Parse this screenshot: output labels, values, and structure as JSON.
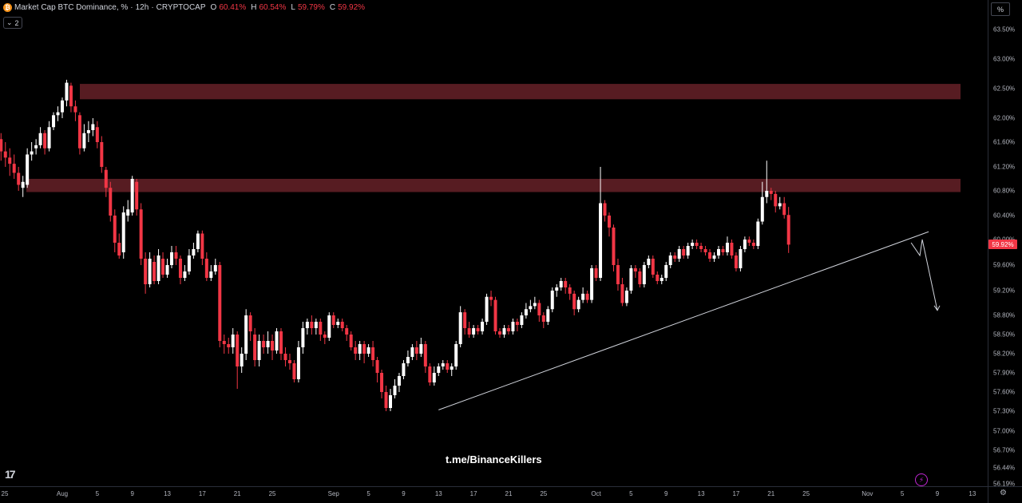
{
  "legend": {
    "symbol": "Market Cap BTC Dominance, %",
    "separator": "·",
    "interval": "12h",
    "exchange": "CRYPTOCAP",
    "open_label": "O",
    "open": "60.41%",
    "high_label": "H",
    "high": "60.54%",
    "low_label": "L",
    "low": "59.79%",
    "close_label": "C",
    "close": "59.92%",
    "coin_icon": "bitcoin-icon"
  },
  "indicators_toggle": {
    "label": "2",
    "icon": "chevron-down-icon"
  },
  "scale_button": "%",
  "watermark": "t.me/BinanceKillers",
  "last_price_tag": "59.92%",
  "colors": {
    "up": "#ffffff",
    "down": "#f23645",
    "zone": "#5c1e24",
    "trendline": "#d1d4dc",
    "background": "#000000"
  },
  "chart_data": {
    "type": "candlestick",
    "title": "Market Cap BTC Dominance, %",
    "interval": "12h",
    "y_unit": "%",
    "ylim": [
      56.19,
      63.74
    ],
    "y_ticks": [
      "63.50%",
      "63.00%",
      "62.50%",
      "62.00%",
      "61.60%",
      "61.20%",
      "60.80%",
      "60.40%",
      "60.00%",
      "59.60%",
      "59.20%",
      "58.80%",
      "58.50%",
      "58.20%",
      "57.90%",
      "57.60%",
      "57.30%",
      "57.00%",
      "56.70%",
      "56.44%",
      "56.19%"
    ],
    "x_ticks": [
      "25",
      "Aug",
      "5",
      "9",
      "13",
      "17",
      "21",
      "25",
      "Sep",
      "5",
      "9",
      "13",
      "17",
      "21",
      "25",
      "Oct",
      "5",
      "9",
      "13",
      "17",
      "21",
      "25",
      "Nov",
      "5",
      "9",
      "13"
    ],
    "resistance_zones": [
      {
        "low": 62.32,
        "high": 62.58
      },
      {
        "low": 60.78,
        "high": 61.0
      }
    ],
    "trendline": {
      "from": {
        "date": "Sep 13",
        "value": 57.32
      },
      "to": {
        "date": "Nov 8",
        "value": 60.13
      }
    },
    "projection": [
      {
        "date": "Nov 6",
        "value": 59.95
      },
      {
        "date": "Nov 7",
        "value": 59.75
      },
      {
        "date": "Nov 7",
        "value": 60.0
      },
      {
        "date": "Nov 9",
        "value": 58.88
      }
    ],
    "candles": [
      [
        61.65,
        61.45,
        61.75,
        61.3
      ],
      [
        61.45,
        61.35,
        61.6,
        61.2
      ],
      [
        61.35,
        61.25,
        61.5,
        61.05
      ],
      [
        61.25,
        61.1,
        61.4,
        61.0
      ],
      [
        61.1,
        60.9,
        61.2,
        60.8
      ],
      [
        60.85,
        60.95,
        61.05,
        60.7
      ],
      [
        60.9,
        61.4,
        61.5,
        60.85
      ],
      [
        61.4,
        61.45,
        61.6,
        61.3
      ],
      [
        61.5,
        61.55,
        61.65,
        61.4
      ],
      [
        61.55,
        61.75,
        61.85,
        61.5
      ],
      [
        61.75,
        61.5,
        61.8,
        61.4
      ],
      [
        61.5,
        61.85,
        61.95,
        61.45
      ],
      [
        61.85,
        62.05,
        62.1,
        61.8
      ],
      [
        62.05,
        62.1,
        62.2,
        61.95
      ],
      [
        62.1,
        62.3,
        62.35,
        62.0
      ],
      [
        62.3,
        62.6,
        62.65,
        62.2
      ],
      [
        62.55,
        62.2,
        62.6,
        62.1
      ],
      [
        62.2,
        62.1,
        62.3,
        61.95
      ],
      [
        62.05,
        61.5,
        62.1,
        61.4
      ],
      [
        61.5,
        61.75,
        61.9,
        61.45
      ],
      [
        61.75,
        61.8,
        61.95,
        61.6
      ],
      [
        61.8,
        61.9,
        62.0,
        61.7
      ],
      [
        61.85,
        61.6,
        61.95,
        61.5
      ],
      [
        61.6,
        61.2,
        61.7,
        61.1
      ],
      [
        61.15,
        60.85,
        61.2,
        60.7
      ],
      [
        60.85,
        60.4,
        60.95,
        60.3
      ],
      [
        60.4,
        59.95,
        60.5,
        59.8
      ],
      [
        59.95,
        59.75,
        60.1,
        59.7
      ],
      [
        59.8,
        60.45,
        60.55,
        59.7
      ],
      [
        60.4,
        60.5,
        60.65,
        60.3
      ],
      [
        60.45,
        61.0,
        61.05,
        60.4
      ],
      [
        60.95,
        60.5,
        61.0,
        60.4
      ],
      [
        60.5,
        59.7,
        60.6,
        59.6
      ],
      [
        59.7,
        59.3,
        59.8,
        59.15
      ],
      [
        59.3,
        59.7,
        59.8,
        59.25
      ],
      [
        59.65,
        59.35,
        59.75,
        59.3
      ],
      [
        59.35,
        59.75,
        59.85,
        59.3
      ],
      [
        59.7,
        59.45,
        59.8,
        59.4
      ],
      [
        59.45,
        59.6,
        59.7,
        59.4
      ],
      [
        59.6,
        59.8,
        59.9,
        59.55
      ],
      [
        59.8,
        59.7,
        59.9,
        59.6
      ],
      [
        59.7,
        59.4,
        59.75,
        59.3
      ],
      [
        59.4,
        59.5,
        59.6,
        59.35
      ],
      [
        59.5,
        59.75,
        59.85,
        59.45
      ],
      [
        59.75,
        59.85,
        59.95,
        59.7
      ],
      [
        59.85,
        60.1,
        60.15,
        59.8
      ],
      [
        60.1,
        59.7,
        60.15,
        59.6
      ],
      [
        59.7,
        59.4,
        59.8,
        59.35
      ],
      [
        59.4,
        59.5,
        59.6,
        59.35
      ],
      [
        59.5,
        59.6,
        59.7,
        59.45
      ],
      [
        59.6,
        58.4,
        59.65,
        58.3
      ],
      [
        58.4,
        58.35,
        58.5,
        58.2
      ],
      [
        58.35,
        58.3,
        58.45,
        58.2
      ],
      [
        58.3,
        58.5,
        58.6,
        58.2
      ],
      [
        58.5,
        58.0,
        58.55,
        57.65
      ],
      [
        58.0,
        58.2,
        58.3,
        57.9
      ],
      [
        58.2,
        58.8,
        58.9,
        58.1
      ],
      [
        58.8,
        58.55,
        58.85,
        58.4
      ],
      [
        58.5,
        58.1,
        58.6,
        58.0
      ],
      [
        58.1,
        58.4,
        58.5,
        58.0
      ],
      [
        58.4,
        58.3,
        58.5,
        58.2
      ],
      [
        58.3,
        58.4,
        58.55,
        58.2
      ],
      [
        58.4,
        58.25,
        58.5,
        58.1
      ],
      [
        58.25,
        58.55,
        58.6,
        58.2
      ],
      [
        58.55,
        58.2,
        58.6,
        58.1
      ],
      [
        58.2,
        58.1,
        58.3,
        58.0
      ],
      [
        58.1,
        58.05,
        58.2,
        57.95
      ],
      [
        58.05,
        57.8,
        58.1,
        57.75
      ],
      [
        57.8,
        58.3,
        58.4,
        57.75
      ],
      [
        58.3,
        58.6,
        58.7,
        58.2
      ],
      [
        58.6,
        58.7,
        58.75,
        58.5
      ],
      [
        58.7,
        58.6,
        58.8,
        58.5
      ],
      [
        58.6,
        58.7,
        58.75,
        58.5
      ],
      [
        58.7,
        58.5,
        58.75,
        58.4
      ],
      [
        58.5,
        58.45,
        58.55,
        58.35
      ],
      [
        58.45,
        58.8,
        58.85,
        58.4
      ],
      [
        58.8,
        58.65,
        58.85,
        58.6
      ],
      [
        58.65,
        58.7,
        58.75,
        58.6
      ],
      [
        58.7,
        58.6,
        58.75,
        58.55
      ],
      [
        58.6,
        58.5,
        58.65,
        58.4
      ],
      [
        58.5,
        58.3,
        58.55,
        58.25
      ],
      [
        58.3,
        58.2,
        58.4,
        58.1
      ],
      [
        58.2,
        58.35,
        58.4,
        58.1
      ],
      [
        58.35,
        58.2,
        58.4,
        58.05
      ],
      [
        58.2,
        58.3,
        58.35,
        58.15
      ],
      [
        58.3,
        58.1,
        58.4,
        58.0
      ],
      [
        58.1,
        57.9,
        58.15,
        57.75
      ],
      [
        57.9,
        57.6,
        57.95,
        57.5
      ],
      [
        57.6,
        57.35,
        57.7,
        57.3
      ],
      [
        57.35,
        57.55,
        57.65,
        57.3
      ],
      [
        57.55,
        57.7,
        57.8,
        57.5
      ],
      [
        57.7,
        57.85,
        57.9,
        57.6
      ],
      [
        57.85,
        58.05,
        58.1,
        57.8
      ],
      [
        58.05,
        58.15,
        58.25,
        58.0
      ],
      [
        58.15,
        58.3,
        58.35,
        58.1
      ],
      [
        58.3,
        58.2,
        58.4,
        58.1
      ],
      [
        58.2,
        58.35,
        58.45,
        58.15
      ],
      [
        58.35,
        58.0,
        58.4,
        57.9
      ],
      [
        58.0,
        57.75,
        58.05,
        57.7
      ],
      [
        57.75,
        57.9,
        58.0,
        57.7
      ],
      [
        57.9,
        58.0,
        58.05,
        57.85
      ],
      [
        58.0,
        58.05,
        58.1,
        57.95
      ],
      [
        58.05,
        57.95,
        58.1,
        57.9
      ],
      [
        57.95,
        58.0,
        58.05,
        57.85
      ],
      [
        58.0,
        58.35,
        58.4,
        57.95
      ],
      [
        58.35,
        58.85,
        58.95,
        58.3
      ],
      [
        58.85,
        58.6,
        58.9,
        58.5
      ],
      [
        58.6,
        58.5,
        58.7,
        58.45
      ],
      [
        58.5,
        58.6,
        58.65,
        58.45
      ],
      [
        58.6,
        58.55,
        58.65,
        58.5
      ],
      [
        58.55,
        58.7,
        58.75,
        58.5
      ],
      [
        58.7,
        59.1,
        59.15,
        58.65
      ],
      [
        59.1,
        59.05,
        59.2,
        58.95
      ],
      [
        59.05,
        58.55,
        59.1,
        58.5
      ],
      [
        58.55,
        58.5,
        58.6,
        58.45
      ],
      [
        58.5,
        58.6,
        58.65,
        58.45
      ],
      [
        58.6,
        58.55,
        58.65,
        58.5
      ],
      [
        58.55,
        58.7,
        58.75,
        58.5
      ],
      [
        58.7,
        58.65,
        58.75,
        58.55
      ],
      [
        58.65,
        58.8,
        58.85,
        58.6
      ],
      [
        58.8,
        58.9,
        59.0,
        58.75
      ],
      [
        58.9,
        58.95,
        59.05,
        58.85
      ],
      [
        58.95,
        59.0,
        59.1,
        58.9
      ],
      [
        59.0,
        58.8,
        59.05,
        58.7
      ],
      [
        58.8,
        58.7,
        58.85,
        58.6
      ],
      [
        58.7,
        58.9,
        58.95,
        58.65
      ],
      [
        58.9,
        59.2,
        59.25,
        58.85
      ],
      [
        59.2,
        59.25,
        59.3,
        59.1
      ],
      [
        59.25,
        59.35,
        59.4,
        59.2
      ],
      [
        59.35,
        59.25,
        59.4,
        59.15
      ],
      [
        59.25,
        59.15,
        59.3,
        59.05
      ],
      [
        59.15,
        58.9,
        59.2,
        58.8
      ],
      [
        58.9,
        59.05,
        59.1,
        58.85
      ],
      [
        59.05,
        59.15,
        59.25,
        59.0
      ],
      [
        59.15,
        59.05,
        59.2,
        59.0
      ],
      [
        59.05,
        59.55,
        59.6,
        59.0
      ],
      [
        59.55,
        59.4,
        59.6,
        59.35
      ],
      [
        59.4,
        60.6,
        61.2,
        59.35
      ],
      [
        60.6,
        60.4,
        60.65,
        60.3
      ],
      [
        60.4,
        60.2,
        60.45,
        60.05
      ],
      [
        60.2,
        59.6,
        60.25,
        59.5
      ],
      [
        59.6,
        59.3,
        59.7,
        59.2
      ],
      [
        59.3,
        59.0,
        59.4,
        58.95
      ],
      [
        59.0,
        59.2,
        59.25,
        58.95
      ],
      [
        59.2,
        59.55,
        59.6,
        59.15
      ],
      [
        59.55,
        59.5,
        59.6,
        59.4
      ],
      [
        59.5,
        59.3,
        59.55,
        59.25
      ],
      [
        59.3,
        59.6,
        59.65,
        59.25
      ],
      [
        59.6,
        59.7,
        59.75,
        59.55
      ],
      [
        59.7,
        59.45,
        59.75,
        59.4
      ],
      [
        59.45,
        59.35,
        59.5,
        59.3
      ],
      [
        59.35,
        59.4,
        59.45,
        59.3
      ],
      [
        59.4,
        59.6,
        59.65,
        59.35
      ],
      [
        59.6,
        59.75,
        59.8,
        59.55
      ],
      [
        59.75,
        59.7,
        59.8,
        59.65
      ],
      [
        59.7,
        59.85,
        59.9,
        59.65
      ],
      [
        59.85,
        59.75,
        59.9,
        59.7
      ],
      [
        59.75,
        59.9,
        59.95,
        59.7
      ],
      [
        59.9,
        59.95,
        60.0,
        59.85
      ],
      [
        59.95,
        59.9,
        60.0,
        59.85
      ],
      [
        59.9,
        59.85,
        59.95,
        59.8
      ],
      [
        59.85,
        59.8,
        59.9,
        59.75
      ],
      [
        59.8,
        59.7,
        59.85,
        59.65
      ],
      [
        59.7,
        59.75,
        59.8,
        59.65
      ],
      [
        59.75,
        59.85,
        59.9,
        59.7
      ],
      [
        59.85,
        59.8,
        59.9,
        59.75
      ],
      [
        59.8,
        59.95,
        60.05,
        59.75
      ],
      [
        59.95,
        59.75,
        60.0,
        59.7
      ],
      [
        59.75,
        59.55,
        59.8,
        59.5
      ],
      [
        59.55,
        59.85,
        59.9,
        59.5
      ],
      [
        59.85,
        60.0,
        60.05,
        59.8
      ],
      [
        60.0,
        59.95,
        60.05,
        59.9
      ],
      [
        59.95,
        59.9,
        60.0,
        59.85
      ],
      [
        59.9,
        60.3,
        60.35,
        59.85
      ],
      [
        60.3,
        60.7,
        60.95,
        60.25
      ],
      [
        60.7,
        60.8,
        61.3,
        60.6
      ],
      [
        60.8,
        60.75,
        60.85,
        60.65
      ],
      [
        60.75,
        60.55,
        60.8,
        60.45
      ],
      [
        60.55,
        60.6,
        60.7,
        60.5
      ],
      [
        60.6,
        60.41,
        60.7,
        60.35
      ],
      [
        60.41,
        59.92,
        60.54,
        59.79
      ]
    ]
  }
}
